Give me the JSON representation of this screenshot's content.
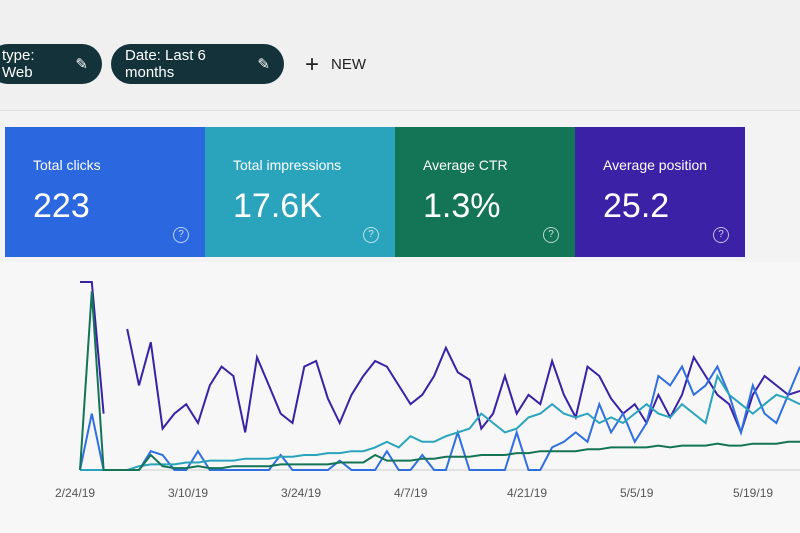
{
  "filters": [
    {
      "label": "type: Web",
      "icon": "pencil-icon"
    },
    {
      "label": "Date: Last 6 months",
      "icon": "pencil-icon"
    }
  ],
  "new_button": {
    "icon": "plus-icon",
    "label": "NEW"
  },
  "metrics": [
    {
      "label": "Total clicks",
      "value": "223",
      "color": "#2b67df"
    },
    {
      "label": "Total impressions",
      "value": "17.6K",
      "color": "#2aa3bd"
    },
    {
      "label": "Average CTR",
      "value": "1.3%",
      "color": "#137456"
    },
    {
      "label": "Average position",
      "value": "25.2",
      "color": "#3a21a5"
    }
  ],
  "help_icon": "?",
  "chart_data": {
    "type": "line",
    "x_ticks": [
      "2/24/19",
      "3/10/19",
      "3/24/19",
      "4/7/19",
      "4/21/19",
      "5/5/19",
      "5/19/19"
    ],
    "grid": false,
    "series": [
      {
        "color": "#3a21a5",
        "values": [
          100,
          100,
          30,
          null,
          75,
          45,
          68,
          22,
          30,
          35,
          25,
          45,
          55,
          50,
          20,
          60,
          45,
          30,
          25,
          55,
          58,
          38,
          25,
          40,
          50,
          58,
          55,
          45,
          35,
          40,
          50,
          65,
          52,
          48,
          22,
          30,
          50,
          30,
          40,
          35,
          58,
          40,
          28,
          55,
          50,
          38,
          30,
          35,
          25,
          40,
          28,
          40,
          60,
          50,
          40,
          35,
          20,
          40,
          50,
          45,
          40,
          42
        ]
      },
      {
        "color": "#2f6fe0",
        "values": [
          0,
          30,
          0,
          0,
          0,
          0,
          10,
          8,
          0,
          0,
          10,
          0,
          0,
          0,
          0,
          0,
          0,
          8,
          0,
          0,
          0,
          0,
          5,
          0,
          0,
          0,
          10,
          0,
          0,
          8,
          0,
          0,
          20,
          0,
          0,
          0,
          0,
          20,
          0,
          0,
          12,
          15,
          20,
          15,
          35,
          20,
          30,
          15,
          25,
          50,
          45,
          55,
          40,
          45,
          55,
          40,
          20,
          45,
          30,
          25,
          40,
          55
        ]
      },
      {
        "color": "#2aa3bd",
        "values": [
          0,
          0,
          0,
          0,
          0,
          2,
          3,
          3,
          3,
          4,
          4,
          5,
          5,
          5,
          6,
          6,
          6,
          7,
          7,
          8,
          8,
          9,
          9,
          10,
          10,
          12,
          15,
          12,
          18,
          15,
          15,
          18,
          20,
          22,
          30,
          25,
          20,
          22,
          28,
          30,
          35,
          30,
          28,
          30,
          25,
          28,
          25,
          30,
          35,
          30,
          28,
          35,
          30,
          25,
          50,
          40,
          35,
          30,
          35,
          40,
          38,
          35
        ]
      },
      {
        "color": "#137456",
        "values": [
          0,
          95,
          0,
          0,
          0,
          0,
          8,
          2,
          1,
          1,
          2,
          1,
          1,
          2,
          2,
          2,
          2,
          3,
          3,
          3,
          3,
          3,
          4,
          4,
          4,
          8,
          5,
          5,
          5,
          6,
          6,
          7,
          7,
          7,
          8,
          8,
          8,
          9,
          9,
          10,
          10,
          10,
          10,
          11,
          11,
          12,
          12,
          12,
          12,
          13,
          12,
          13,
          13,
          13,
          14,
          13,
          13,
          14,
          14,
          14,
          15,
          15
        ]
      }
    ]
  }
}
